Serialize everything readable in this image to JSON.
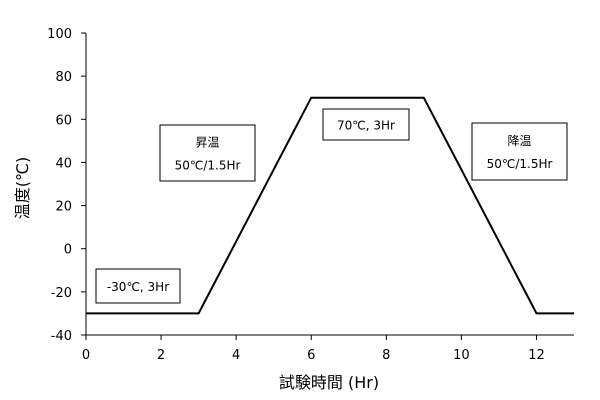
{
  "chart_data": {
    "type": "line",
    "title": "",
    "xlabel": "試験時間 (Hr)",
    "ylabel": "温度(℃)",
    "xlim": [
      0,
      13
    ],
    "ylim": [
      -40,
      100
    ],
    "x_ticks": [
      0,
      2,
      4,
      6,
      8,
      10,
      12
    ],
    "y_ticks": [
      -40,
      -20,
      0,
      20,
      40,
      60,
      80,
      100
    ],
    "grid": false,
    "legend": "none",
    "series": [
      {
        "color": "#000000",
        "points": [
          {
            "x": 0,
            "y": -30
          },
          {
            "x": 3,
            "y": -30
          },
          {
            "x": 6,
            "y": 70
          },
          {
            "x": 9,
            "y": 70
          },
          {
            "x": 12,
            "y": -30
          },
          {
            "x": 13,
            "y": -30
          }
        ]
      }
    ],
    "annotations": [
      {
        "id": "cold-hold",
        "lines": [
          "-30℃, 3Hr"
        ]
      },
      {
        "id": "ramp-up",
        "lines": [
          "昇温",
          "50℃/1.5Hr"
        ]
      },
      {
        "id": "hot-hold",
        "lines": [
          "70℃, 3Hr"
        ]
      },
      {
        "id": "ramp-down",
        "lines": [
          "降温",
          "50℃/1.5Hr"
        ]
      }
    ]
  }
}
